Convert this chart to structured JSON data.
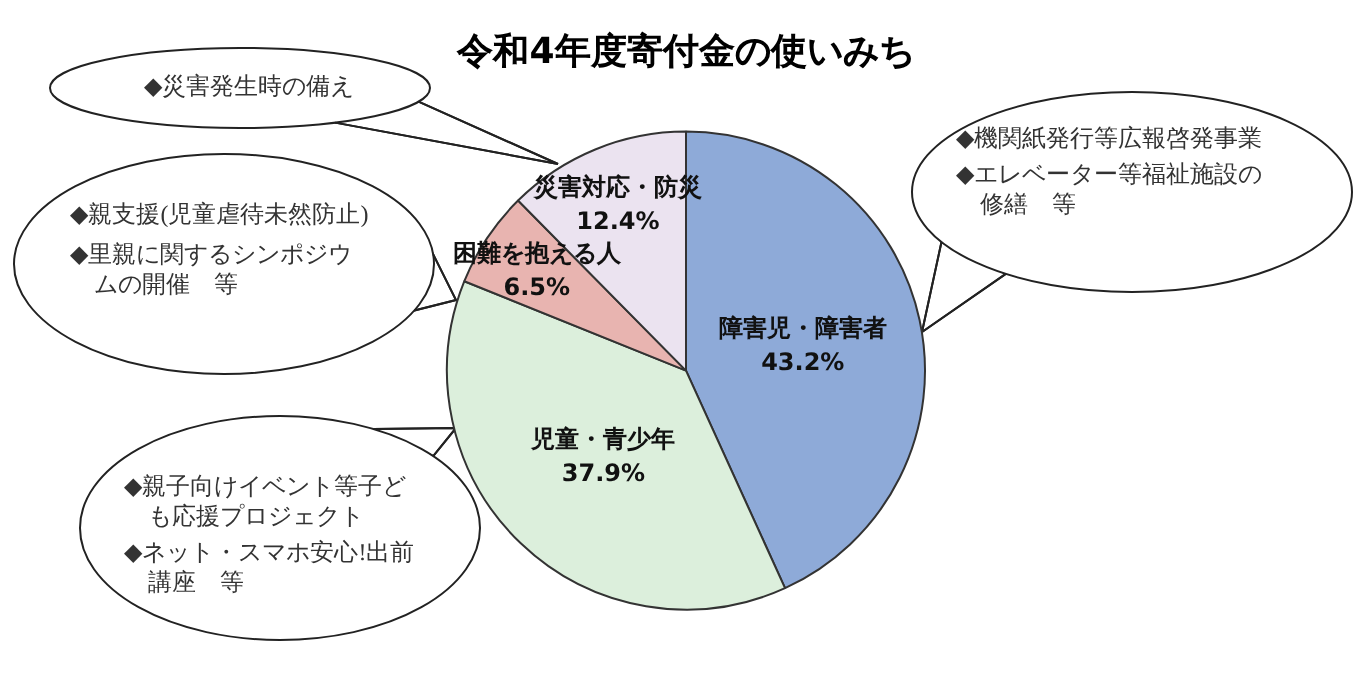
{
  "chart_data": {
    "type": "pie",
    "title": "令和4年度寄付金の使いみち",
    "categories": [
      "障害児・障害者",
      "児童・青少年",
      "困難を抱える人",
      "災害対応・防災"
    ],
    "values": [
      43.2,
      37.9,
      6.5,
      12.4
    ],
    "value_labels": [
      "43.2%",
      "37.9%",
      "6.5%",
      "12.4%"
    ],
    "colors": [
      "#8eaad8",
      "#dcefdc",
      "#e8b4b0",
      "#ebe3f0"
    ],
    "legend": false,
    "annotations": [
      "◆機関紙発行等広報啓発事業",
      "◆エレベーター等福祉施設の修繕　等",
      "◆親支援(児童虐待未然防止)",
      "◆里親に関するシンポジウムの開催　等",
      "◆親子向けイベント等子ども応援プロジェクト",
      "◆ネット・スマホ安心!出前講座　等",
      "◆災害発生時の備え"
    ]
  }
}
